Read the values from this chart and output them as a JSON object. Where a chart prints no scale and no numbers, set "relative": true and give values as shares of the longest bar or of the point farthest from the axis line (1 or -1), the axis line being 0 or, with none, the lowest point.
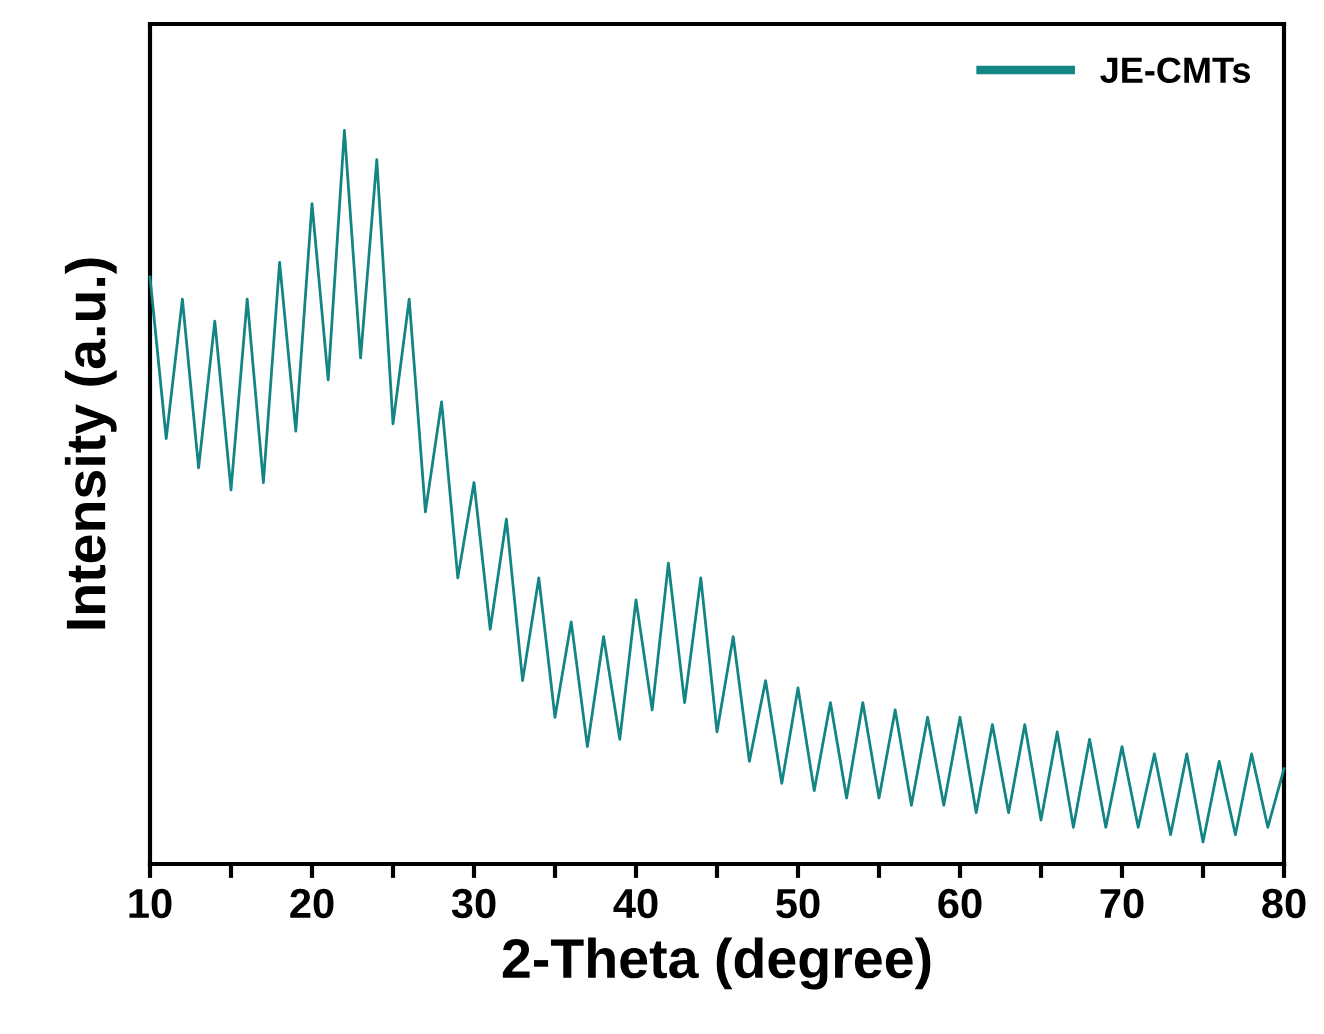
{
  "chart_data": {
    "type": "line",
    "xlabel": "2-Theta (degree)",
    "ylabel": "Intensity (a.u.)",
    "relative": true,
    "legend": "top right",
    "grid": false,
    "tick_labels": "x",
    "x": [
      10,
      11,
      12,
      13,
      14,
      15,
      16,
      17,
      18,
      19,
      20,
      21,
      22,
      23,
      24,
      25,
      26,
      27,
      28,
      29,
      30,
      31,
      32,
      33,
      34,
      35,
      36,
      37,
      38,
      39,
      40,
      41,
      42,
      43,
      44,
      45,
      46,
      47,
      48,
      49,
      50,
      51,
      52,
      53,
      54,
      55,
      56,
      57,
      58,
      59,
      60,
      61,
      62,
      63,
      64,
      65,
      66,
      67,
      68,
      69,
      70,
      71,
      72,
      73,
      74,
      75,
      76,
      77,
      78,
      79,
      80
    ],
    "xlim": [
      10,
      80
    ],
    "xticks": [
      10,
      {
        "value": 15,
        "label": null
      },
      20,
      {
        "value": 25,
        "label": null
      },
      30,
      {
        "value": 35,
        "label": null
      },
      40,
      {
        "value": 45,
        "label": null
      },
      50,
      {
        "value": 55,
        "label": null
      },
      60,
      {
        "value": 65,
        "label": null
      },
      70,
      {
        "value": 75,
        "label": null
      },
      80
    ],
    "series": [
      {
        "name": "JE-CMTs",
        "color": "#138585",
        "values": [
          0.8,
          0.58,
          0.77,
          0.54,
          0.74,
          0.51,
          0.77,
          0.52,
          0.82,
          0.59,
          0.9,
          0.66,
          1.0,
          0.69,
          0.96,
          0.6,
          0.77,
          0.48,
          0.63,
          0.39,
          0.52,
          0.32,
          0.47,
          0.25,
          0.39,
          0.2,
          0.33,
          0.16,
          0.31,
          0.17,
          0.36,
          0.21,
          0.41,
          0.22,
          0.39,
          0.18,
          0.31,
          0.14,
          0.25,
          0.11,
          0.24,
          0.1,
          0.22,
          0.09,
          0.22,
          0.09,
          0.21,
          0.08,
          0.2,
          0.08,
          0.2,
          0.07,
          0.19,
          0.07,
          0.19,
          0.06,
          0.18,
          0.05,
          0.17,
          0.05,
          0.16,
          0.05,
          0.15,
          0.04,
          0.15,
          0.03,
          0.14,
          0.04,
          0.15,
          0.05,
          0.13
        ]
      }
    ]
  }
}
